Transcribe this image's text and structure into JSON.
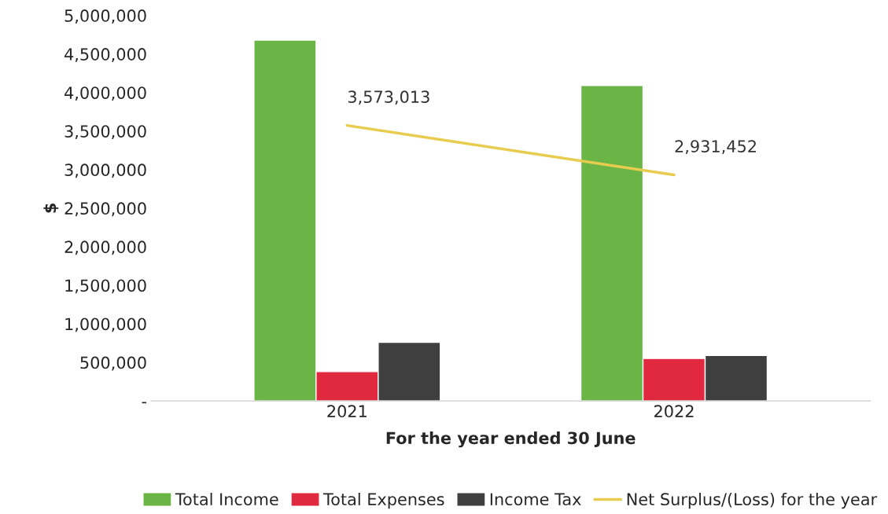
{
  "chart_data": {
    "type": "bar",
    "xlabel": "For the year ended 30 June",
    "ylabel": "$",
    "categories": [
      "2021",
      "2022"
    ],
    "series": [
      {
        "name": "Total Income",
        "color": "#6ab546",
        "values": [
          4680000,
          4090000
        ]
      },
      {
        "name": "Total Expenses",
        "color": "#e0283f",
        "values": [
          380000,
          550000
        ]
      },
      {
        "name": "Income Tax",
        "color": "#3f3f3f",
        "values": [
          760000,
          590000
        ]
      },
      {
        "name": "Net Surplus/(Loss) for the year",
        "type": "line",
        "color": "#e8cc50",
        "values": [
          3573013,
          2931452
        ],
        "value_labels": [
          "3,573,013",
          "2,931,452"
        ]
      }
    ],
    "ylim": [
      0,
      5000000
    ],
    "yticks": [
      {
        "value": 0,
        "label": "-"
      },
      {
        "value": 500000,
        "label": "500,000"
      },
      {
        "value": 1000000,
        "label": "1,000,000"
      },
      {
        "value": 1500000,
        "label": "1,500,000"
      },
      {
        "value": 2000000,
        "label": "2,000,000"
      },
      {
        "value": 2500000,
        "label": "2,500,000"
      },
      {
        "value": 3000000,
        "label": "3,000,000"
      },
      {
        "value": 3500000,
        "label": "3,500,000"
      },
      {
        "value": 4000000,
        "label": "4,000,000"
      },
      {
        "value": 4500000,
        "label": "4,500,000"
      },
      {
        "value": 5000000,
        "label": "5,000,000"
      }
    ],
    "grid": false,
    "legend": "bottom"
  }
}
